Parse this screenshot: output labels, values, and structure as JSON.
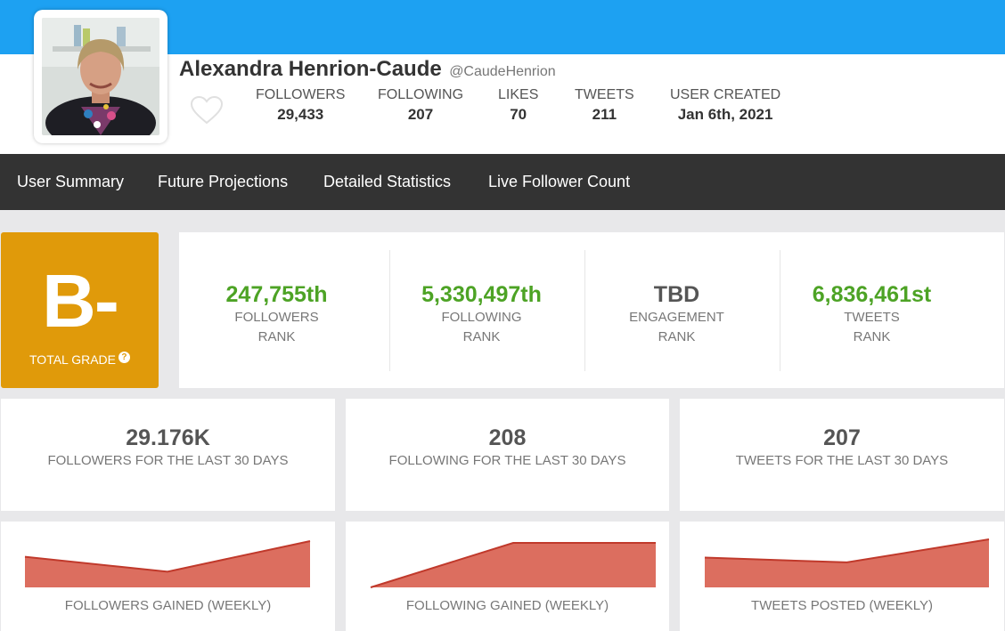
{
  "profile": {
    "name": "Alexandra Henrion-Caude",
    "handle": "@CaudeHenrion"
  },
  "stats": [
    {
      "label": "FOLLOWERS",
      "value": "29,433"
    },
    {
      "label": "FOLLOWING",
      "value": "207"
    },
    {
      "label": "LIKES",
      "value": "70"
    },
    {
      "label": "TWEETS",
      "value": "211"
    },
    {
      "label": "USER CREATED",
      "value": "Jan 6th, 2021"
    }
  ],
  "nav": [
    {
      "label": "User Summary"
    },
    {
      "label": "Future Projections"
    },
    {
      "label": "Detailed Statistics"
    },
    {
      "label": "Live Follower Count"
    }
  ],
  "grade": {
    "letter": "B-",
    "label": "TOTAL GRADE",
    "help": "?"
  },
  "ranks": [
    {
      "value": "247,755th",
      "label1": "FOLLOWERS",
      "label2": "RANK"
    },
    {
      "value": "5,330,497th",
      "label1": "FOLLOWING",
      "label2": "RANK"
    },
    {
      "value": "TBD",
      "label1": "ENGAGEMENT",
      "label2": "RANK"
    },
    {
      "value": "6,836,461st",
      "label1": "TWEETS",
      "label2": "RANK"
    }
  ],
  "summary_cards": [
    {
      "value": "29.176K",
      "label": "FOLLOWERS FOR THE LAST 30 DAYS"
    },
    {
      "value": "208",
      "label": "FOLLOWING FOR THE LAST 30 DAYS"
    },
    {
      "value": "207",
      "label": "TWEETS FOR THE LAST 30 DAYS"
    }
  ],
  "colors": {
    "top_bar": "#1da1f2",
    "nav_bg": "#333333",
    "grade_bg": "#e09a0a",
    "rank_value": "#4da325",
    "chart_fill": "#dc6e5f",
    "chart_line": "#c0392b"
  },
  "chart_data": [
    {
      "type": "area",
      "title": "FOLLOWERS GAINED (WEEKLY)",
      "values": [
        0.66,
        0.34,
        1.0
      ],
      "ylim": [
        0,
        1
      ]
    },
    {
      "type": "area",
      "title": "FOLLOWING GAINED (WEEKLY)",
      "values": [
        0.0,
        1.0,
        1.0
      ],
      "ylim": [
        0,
        1
      ]
    },
    {
      "type": "area",
      "title": "TWEETS POSTED (WEEKLY)",
      "values": [
        0.62,
        0.52,
        1.0
      ],
      "ylim": [
        0,
        1
      ]
    }
  ]
}
